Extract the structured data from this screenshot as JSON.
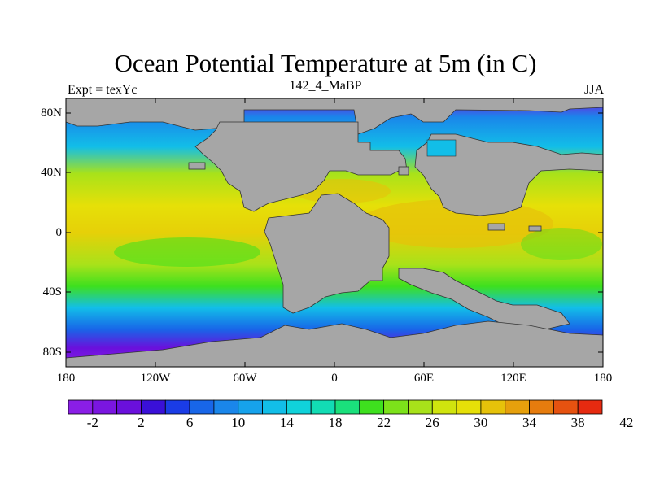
{
  "title": "Ocean Potential Temperature at 5m (in C)",
  "left_subtitle": "Expt = texYc",
  "center_subtitle": "142_4_MaBP",
  "right_subtitle": "JJA",
  "lat_ticks": [
    "80N",
    "40N",
    "0",
    "40S",
    "80S"
  ],
  "lon_ticks": [
    "180",
    "120W",
    "60W",
    "0",
    "60E",
    "120E",
    "180"
  ],
  "colorbar": {
    "labels": [
      "-2",
      "2",
      "6",
      "10",
      "14",
      "18",
      "22",
      "26",
      "30",
      "34",
      "38",
      "42"
    ],
    "colors": [
      "#8a1ee6",
      "#7a16e0",
      "#6a10dc",
      "#3a10d8",
      "#1a3ce6",
      "#1866e8",
      "#1a86ea",
      "#16a2ec",
      "#12bee8",
      "#10d2da",
      "#12dcb4",
      "#1ae07c",
      "#3ee01e",
      "#7ce21a",
      "#a8e21a",
      "#d0e40e",
      "#e6e008",
      "#e6c20a",
      "#e6a00c",
      "#e67c0e",
      "#e65210",
      "#e62a10"
    ]
  },
  "colors": {
    "land": "#a6a6a6",
    "ocean_cold": "#7a18e2",
    "ocean_warm": "#e6c20a"
  }
}
